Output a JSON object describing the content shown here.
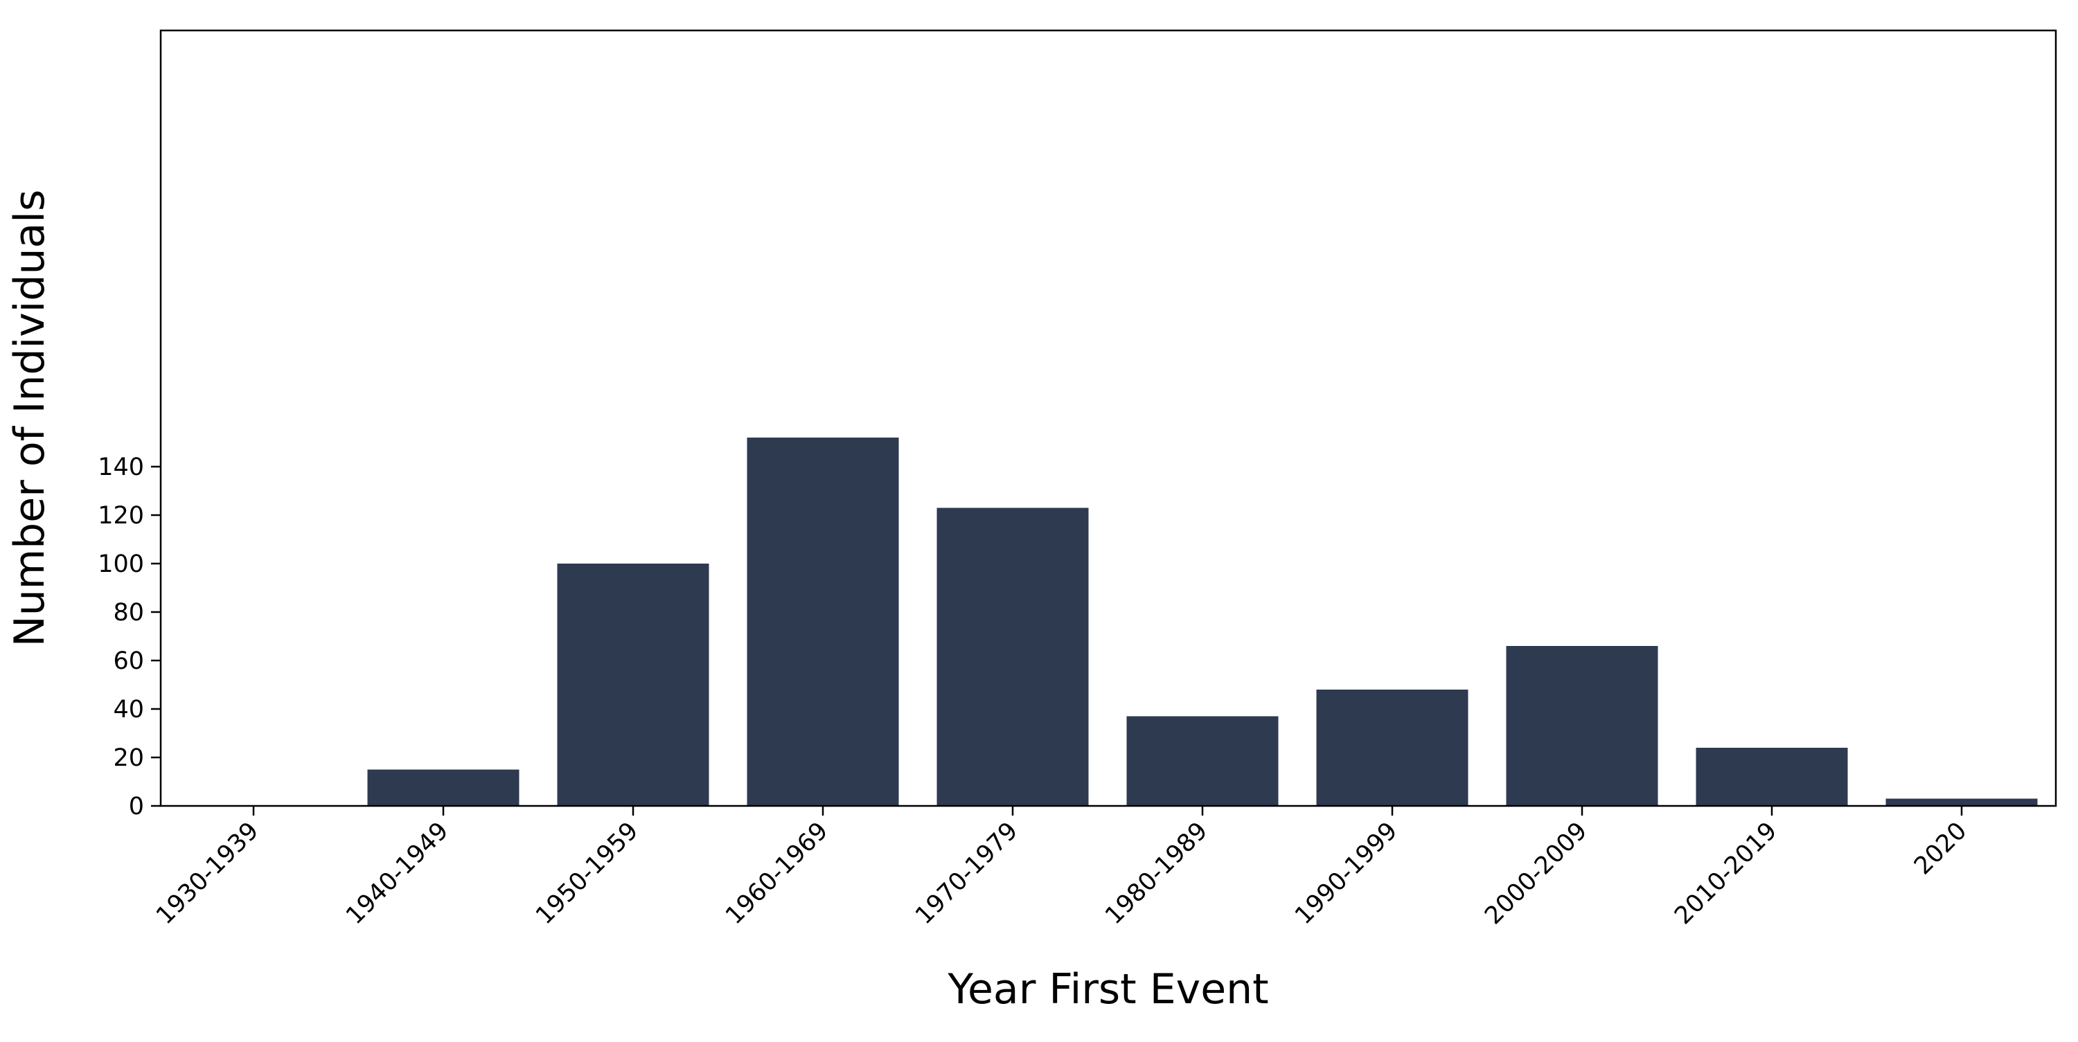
{
  "colors": {
    "bar": "#2e3a50",
    "axis": "#000000",
    "background": "#ffffff"
  },
  "chart_data": {
    "type": "bar",
    "title": "",
    "xlabel": "Year First Event",
    "ylabel": "Number of Individuals",
    "categories": [
      "1930-1939",
      "1940-1949",
      "1950-1959",
      "1960-1969",
      "1970-1979",
      "1980-1989",
      "1990-1999",
      "2000-2009",
      "2010-2019",
      "2020"
    ],
    "values": [
      0,
      15,
      100,
      152,
      123,
      37,
      48,
      66,
      24,
      3
    ],
    "ylim": [
      0,
      160
    ],
    "yticks": [
      0,
      20,
      40,
      60,
      80,
      100,
      120,
      140
    ],
    "grid": false,
    "legend": false
  }
}
